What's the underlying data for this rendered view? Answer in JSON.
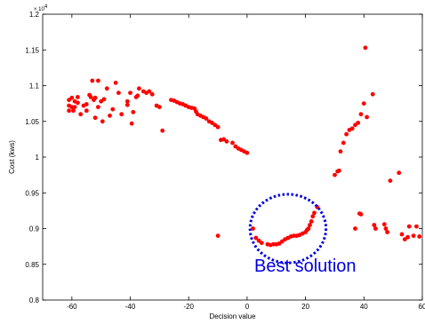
{
  "chart_data": {
    "type": "scatter",
    "title": "",
    "xlabel": "Decision value",
    "ylabel": "Cost (kws)",
    "y_multiplier_label": "× 10",
    "y_multiplier_exponent": "4",
    "xlim": [
      -70,
      60
    ],
    "ylim": [
      8000,
      12000
    ],
    "x_ticks": [
      -60,
      -40,
      -20,
      0,
      20,
      40,
      60
    ],
    "x_tick_labels": [
      "-60",
      "-40",
      "-20",
      "0",
      "20",
      "40",
      "60"
    ],
    "y_ticks": [
      8000,
      8500,
      9000,
      9500,
      10000,
      10500,
      11000,
      11500,
      12000
    ],
    "y_tick_labels": [
      "0.8",
      "0.85",
      "0.9",
      "0.95",
      "1",
      "1.05",
      "1.1",
      "1.15",
      "1.2"
    ],
    "grid": false,
    "marker_color": "#ff0000",
    "points": [
      {
        "x": -61,
        "y": 10800
      },
      {
        "x": -61,
        "y": 10720
      },
      {
        "x": -61,
        "y": 10650
      },
      {
        "x": -60,
        "y": 10830
      },
      {
        "x": -60,
        "y": 10700
      },
      {
        "x": -59.5,
        "y": 10650
      },
      {
        "x": -59,
        "y": 10780
      },
      {
        "x": -59,
        "y": 10700
      },
      {
        "x": -58,
        "y": 10840
      },
      {
        "x": -58,
        "y": 10760
      },
      {
        "x": -57,
        "y": 10600
      },
      {
        "x": -56,
        "y": 10720
      },
      {
        "x": -55,
        "y": 10740
      },
      {
        "x": -55,
        "y": 10650
      },
      {
        "x": -54,
        "y": 10870
      },
      {
        "x": -53.5,
        "y": 10840
      },
      {
        "x": -53,
        "y": 11070
      },
      {
        "x": -52.5,
        "y": 10800
      },
      {
        "x": -52,
        "y": 10550
      },
      {
        "x": -52,
        "y": 10830
      },
      {
        "x": -51,
        "y": 11070
      },
      {
        "x": -51,
        "y": 10700
      },
      {
        "x": -50,
        "y": 10780
      },
      {
        "x": -49.5,
        "y": 10500
      },
      {
        "x": -49,
        "y": 10810
      },
      {
        "x": -48,
        "y": 10960
      },
      {
        "x": -47,
        "y": 10580
      },
      {
        "x": -46,
        "y": 10670
      },
      {
        "x": -45,
        "y": 11040
      },
      {
        "x": -44,
        "y": 10900
      },
      {
        "x": -43,
        "y": 10600
      },
      {
        "x": -41,
        "y": 10780
      },
      {
        "x": -41,
        "y": 10730
      },
      {
        "x": -40,
        "y": 10900
      },
      {
        "x": -39.5,
        "y": 10470
      },
      {
        "x": -39,
        "y": 10630
      },
      {
        "x": -38,
        "y": 10840
      },
      {
        "x": -37.5,
        "y": 10860
      },
      {
        "x": -37,
        "y": 10960
      },
      {
        "x": -35.5,
        "y": 10920
      },
      {
        "x": -34.5,
        "y": 10900
      },
      {
        "x": -33.5,
        "y": 10920
      },
      {
        "x": -32.5,
        "y": 10880
      },
      {
        "x": -31,
        "y": 10720
      },
      {
        "x": -30,
        "y": 10700
      },
      {
        "x": -29,
        "y": 10370
      },
      {
        "x": -26,
        "y": 10800
      },
      {
        "x": -25,
        "y": 10790
      },
      {
        "x": -24,
        "y": 10770
      },
      {
        "x": -23,
        "y": 10750
      },
      {
        "x": -22,
        "y": 10740
      },
      {
        "x": -21,
        "y": 10720
      },
      {
        "x": -20,
        "y": 10700
      },
      {
        "x": -19,
        "y": 10690
      },
      {
        "x": -18,
        "y": 10680
      },
      {
        "x": -17.5,
        "y": 10640
      },
      {
        "x": -17,
        "y": 10600
      },
      {
        "x": -16,
        "y": 10580
      },
      {
        "x": -15,
        "y": 10560
      },
      {
        "x": -14,
        "y": 10540
      },
      {
        "x": -13,
        "y": 10500
      },
      {
        "x": -12,
        "y": 10480
      },
      {
        "x": -11,
        "y": 10450
      },
      {
        "x": -10,
        "y": 10420
      },
      {
        "x": -9,
        "y": 10240
      },
      {
        "x": -8,
        "y": 10250
      },
      {
        "x": -7,
        "y": 10220
      },
      {
        "x": -5,
        "y": 10200
      },
      {
        "x": -4,
        "y": 10150
      },
      {
        "x": -3,
        "y": 10120
      },
      {
        "x": -2,
        "y": 10100
      },
      {
        "x": -1,
        "y": 10080
      },
      {
        "x": 0,
        "y": 10060
      },
      {
        "x": -10,
        "y": 8900
      },
      {
        "x": 2,
        "y": 9000
      },
      {
        "x": 3,
        "y": 8870
      },
      {
        "x": 4,
        "y": 8830
      },
      {
        "x": 5,
        "y": 8800
      },
      {
        "x": 7,
        "y": 8780
      },
      {
        "x": 8,
        "y": 8770
      },
      {
        "x": 9,
        "y": 8780
      },
      {
        "x": 10,
        "y": 8780
      },
      {
        "x": 11,
        "y": 8790
      },
      {
        "x": 12,
        "y": 8820
      },
      {
        "x": 13,
        "y": 8850
      },
      {
        "x": 14,
        "y": 8870
      },
      {
        "x": 15,
        "y": 8890
      },
      {
        "x": 16,
        "y": 8900
      },
      {
        "x": 17,
        "y": 8900
      },
      {
        "x": 18,
        "y": 8910
      },
      {
        "x": 19,
        "y": 8930
      },
      {
        "x": 20,
        "y": 8950
      },
      {
        "x": 20.5,
        "y": 8980
      },
      {
        "x": 21,
        "y": 9000
      },
      {
        "x": 21.5,
        "y": 9050
      },
      {
        "x": 22,
        "y": 9100
      },
      {
        "x": 22.5,
        "y": 9170
      },
      {
        "x": 23,
        "y": 9220
      },
      {
        "x": 24,
        "y": 9300
      },
      {
        "x": 30,
        "y": 9750
      },
      {
        "x": 31,
        "y": 9800
      },
      {
        "x": 31.5,
        "y": 9810
      },
      {
        "x": 32,
        "y": 10080
      },
      {
        "x": 33,
        "y": 10200
      },
      {
        "x": 34,
        "y": 10320
      },
      {
        "x": 35,
        "y": 10380
      },
      {
        "x": 36,
        "y": 10400
      },
      {
        "x": 37,
        "y": 10450
      },
      {
        "x": 38,
        "y": 10480
      },
      {
        "x": 39,
        "y": 10600
      },
      {
        "x": 40,
        "y": 10750
      },
      {
        "x": 40.5,
        "y": 11530
      },
      {
        "x": 41,
        "y": 10560
      },
      {
        "x": 43,
        "y": 10880
      },
      {
        "x": 43.5,
        "y": 9050
      },
      {
        "x": 44,
        "y": 9000
      },
      {
        "x": 38.5,
        "y": 9210
      },
      {
        "x": 39,
        "y": 9200
      },
      {
        "x": 37,
        "y": 9000
      },
      {
        "x": 47,
        "y": 9060
      },
      {
        "x": 47.5,
        "y": 9000
      },
      {
        "x": 48,
        "y": 8950
      },
      {
        "x": 49,
        "y": 9670
      },
      {
        "x": 52,
        "y": 9780
      },
      {
        "x": 53,
        "y": 8920
      },
      {
        "x": 54,
        "y": 8850
      },
      {
        "x": 55,
        "y": 8880
      },
      {
        "x": 55.5,
        "y": 9030
      },
      {
        "x": 57,
        "y": 8900
      },
      {
        "x": 58,
        "y": 9030
      },
      {
        "x": 59,
        "y": 8890
      }
    ],
    "annotation": {
      "text": "Best solution",
      "color": "#0000e0",
      "ellipse_center": [
        14,
        9000
      ],
      "ellipse_radius_x": 13,
      "ellipse_radius_y": 480
    }
  }
}
